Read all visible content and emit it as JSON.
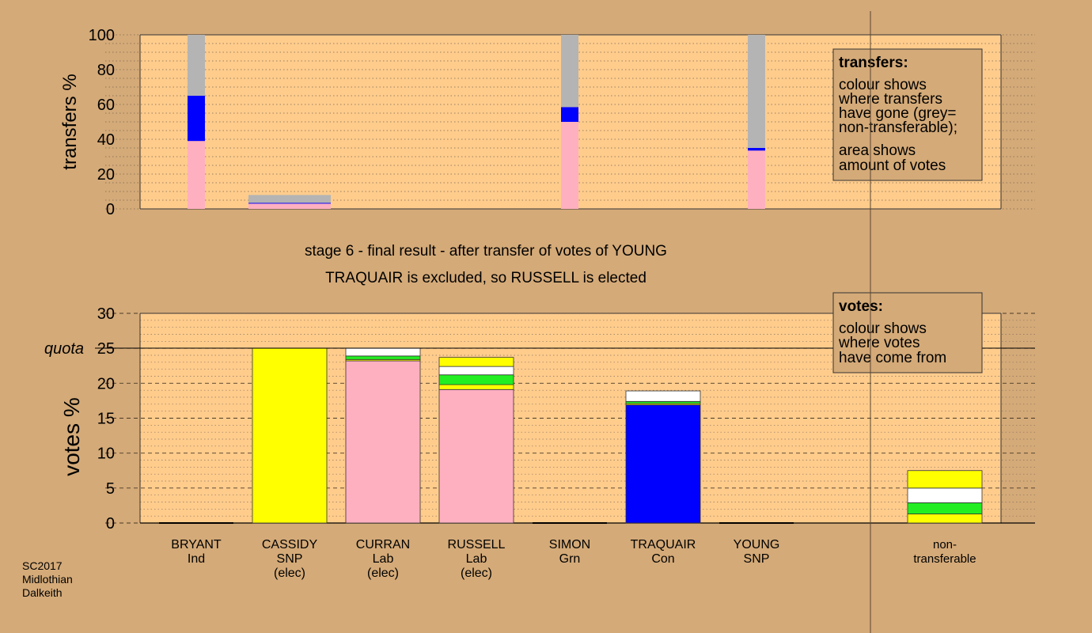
{
  "colors": {
    "background": "#d4aa78",
    "plot_bg": "#ffcc8c",
    "grey": "#b4b4b4",
    "blue": "#0000ff",
    "pink": "#ffb0c0",
    "yellow": "#ffff00",
    "green": "#22ee22",
    "white": "#ffffff"
  },
  "chart_data": [
    {
      "id": "transfers",
      "type": "bar",
      "stacked": true,
      "ylabel": "transfers %",
      "ylim": [
        0,
        100
      ],
      "yticks": [
        0,
        20,
        40,
        60,
        80,
        100
      ],
      "grid": true,
      "bars": [
        {
          "candidate": "BRYANT",
          "segments": [
            {
              "color": "pink",
              "value": 39
            },
            {
              "color": "blue",
              "value": 26
            },
            {
              "color": "grey",
              "value": 35
            }
          ]
        },
        {
          "candidate": "CASSIDY",
          "segments": [
            {
              "color": "pink",
              "value": 3
            },
            {
              "color": "blue",
              "value": 0.5
            },
            {
              "color": "grey",
              "value": 4.5
            }
          ]
        },
        {
          "candidate": "SIMON",
          "segments": [
            {
              "color": "pink",
              "value": 50
            },
            {
              "color": "blue",
              "value": 8.5
            },
            {
              "color": "grey",
              "value": 41.5
            }
          ]
        },
        {
          "candidate": "YOUNG",
          "segments": [
            {
              "color": "pink",
              "value": 33.5
            },
            {
              "color": "blue",
              "value": 1.5
            },
            {
              "color": "grey",
              "value": 65
            }
          ]
        }
      ],
      "legend": {
        "title": "transfers:",
        "lines": [
          "colour shows",
          "where transfers",
          "have gone (grey=",
          "non-transferable);",
          "area shows",
          "amount of votes"
        ]
      }
    },
    {
      "id": "votes",
      "type": "bar",
      "stacked": true,
      "ylabel": "votes %",
      "ylim": [
        0,
        30
      ],
      "yticks": [
        0,
        5,
        10,
        15,
        20,
        25,
        30
      ],
      "grid": true,
      "quota": {
        "label": "quota",
        "value": 25
      },
      "bars": [
        {
          "candidate": "BRYANT",
          "party": "Ind",
          "status": "",
          "segments": []
        },
        {
          "candidate": "CASSIDY",
          "party": "SNP",
          "status": "(elec)",
          "segments": [
            {
              "color": "yellow",
              "value": 25
            }
          ]
        },
        {
          "candidate": "CURRAN",
          "party": "Lab",
          "status": "(elec)",
          "segments": [
            {
              "color": "pink",
              "value": 23.2
            },
            {
              "color": "yellow",
              "value": 0.2
            },
            {
              "color": "green",
              "value": 0.5
            },
            {
              "color": "white",
              "value": 1.1
            }
          ]
        },
        {
          "candidate": "RUSSELL",
          "party": "Lab",
          "status": "(elec)",
          "segments": [
            {
              "color": "pink",
              "value": 19.1
            },
            {
              "color": "yellow",
              "value": 0.7
            },
            {
              "color": "green",
              "value": 1.4
            },
            {
              "color": "white",
              "value": 1.2
            },
            {
              "color": "yellow",
              "value": 1.3
            }
          ]
        },
        {
          "candidate": "SIMON",
          "party": "Grn",
          "status": "",
          "segments": []
        },
        {
          "candidate": "TRAQUAIR",
          "party": "Con",
          "status": "",
          "segments": [
            {
              "color": "blue",
              "value": 16.9
            },
            {
              "color": "yellow",
              "value": 0.2
            },
            {
              "color": "green",
              "value": 0.3
            },
            {
              "color": "white",
              "value": 1.5
            }
          ]
        },
        {
          "candidate": "YOUNG",
          "party": "SNP",
          "status": "",
          "segments": []
        },
        {
          "candidate": "non-",
          "party": "transferable",
          "status": "",
          "segments": [
            {
              "color": "yellow",
              "value": 1.3
            },
            {
              "color": "green",
              "value": 1.6
            },
            {
              "color": "white",
              "value": 2.1
            },
            {
              "color": "yellow",
              "value": 2.5
            }
          ]
        }
      ],
      "legend": {
        "title": "votes:",
        "lines": [
          "colour shows",
          "where votes",
          "have come from"
        ]
      }
    }
  ],
  "stage": {
    "line1": "stage 6 - final result - after transfer of votes of YOUNG",
    "line2": "TRAQUAIR is excluded, so RUSSELL is elected"
  },
  "footer": [
    "SC2017",
    "Midlothian",
    "Dalkeith"
  ]
}
